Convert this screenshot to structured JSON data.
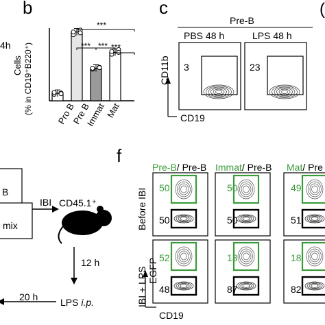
{
  "panels": {
    "b": {
      "letter": "b",
      "ylabel_line1": "Cells",
      "ylabel_line2": "(% in CD19⁺B220⁺)",
      "significance": [
        "***",
        "***",
        "***",
        "***"
      ],
      "chart_data": {
        "type": "bar",
        "categories": [
          "Pro B",
          "Pre B",
          "Immat",
          "Mat"
        ],
        "values": [
          4,
          37,
          17.5,
          26
        ],
        "points": [
          [
            3.5,
            4.2,
            4.5,
            3.8
          ],
          [
            35.5,
            38,
            37,
            36.5
          ],
          [
            17,
            18,
            17.5,
            17.8
          ],
          [
            25,
            27.5,
            26.5,
            26
          ]
        ],
        "ylim": [
          0,
          42
        ],
        "grid": false
      }
    },
    "c": {
      "letter": "c",
      "header": "Pre-B",
      "plots": [
        {
          "title": "PBS 48 h",
          "value": "3"
        },
        {
          "title": "LPS 48 h",
          "value": "23"
        }
      ],
      "yaxis": "CD11b",
      "xaxis": "CD19"
    },
    "e_fragment": {
      "box_text_1": "B",
      "box_text_2": "mix",
      "ibi": "IBI",
      "cd45": "CD45.1⁺",
      "hours_12": "12 h",
      "hours_20": "20 h",
      "lps_ip": "LPS ",
      "ip": "i.p."
    },
    "f": {
      "letter": "f",
      "columns": [
        {
          "green": "Pre-B",
          "black": "/ Pre-B"
        },
        {
          "green": "Immat",
          "black": "/ Pre-B"
        },
        {
          "green": "Mat",
          "black": "/ Pre"
        }
      ],
      "row_labels": [
        "Before IBI",
        "IBI + LPS"
      ],
      "egfp": "EGFP",
      "xaxis": "CD19",
      "values": [
        [
          "50",
          "50",
          "49"
        ],
        [
          "50",
          "50",
          "51"
        ],
        [
          "52",
          "13",
          "18"
        ],
        [
          "48",
          "87",
          "82"
        ]
      ]
    },
    "cut_letters": {
      "left_top": "4h",
      "right_top": "("
    }
  }
}
